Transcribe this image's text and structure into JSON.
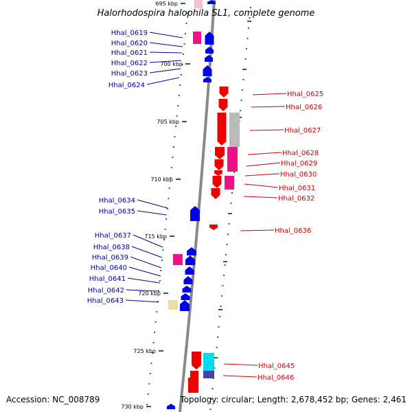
{
  "header": {
    "title": "Halorhodospira halophila SL1, complete genome"
  },
  "footer": {
    "accession": "Accession: NC_008789",
    "stats": "Topology: circular; Length: 2,678,452 bp; Genes: 2,461"
  },
  "chart_data": {
    "type": "circular-genome-map-detail",
    "accession": "NC_008789",
    "organism": "Halorhodospira halophila SL1",
    "topology": "circular",
    "length_bp": 2678452,
    "gene_count": 2461,
    "scale_unit": "kbp",
    "visible_range_kbp": [
      695,
      730
    ],
    "scale_ticks": [
      {
        "kbp": 695,
        "label": "695 kbp"
      },
      {
        "kbp": 700,
        "label": "700 kbp"
      },
      {
        "kbp": 705,
        "label": "705 kbp"
      },
      {
        "kbp": 710,
        "label": "710 kbp"
      },
      {
        "kbp": 715,
        "label": "715 kbp"
      },
      {
        "kbp": 720,
        "label": "720 kbp"
      },
      {
        "kbp": 725,
        "label": "725 kbp"
      },
      {
        "kbp": 730,
        "label": "730 kbp"
      }
    ],
    "genes": [
      {
        "id": "Hhal_0619",
        "strand": "-",
        "color": "#0000ee",
        "cog_color": "#ee1188"
      },
      {
        "id": "Hhal_0620",
        "strand": "-",
        "color": "#0000ee"
      },
      {
        "id": "Hhal_0621",
        "strand": "-",
        "color": "#0000ee"
      },
      {
        "id": "Hhal_0622",
        "strand": "-",
        "color": "#0000ee"
      },
      {
        "id": "Hhal_0623",
        "strand": "-",
        "color": "#0000ee"
      },
      {
        "id": "Hhal_0624",
        "strand": "-",
        "color": "#0000ee"
      },
      {
        "id": "Hhal_0625",
        "strand": "+",
        "color": "#ee0000"
      },
      {
        "id": "Hhal_0626",
        "strand": "+",
        "color": "#ee0000"
      },
      {
        "id": "Hhal_0627",
        "strand": "+",
        "color": "#ee0000",
        "cog_color": "#bbbbbb"
      },
      {
        "id": "Hhal_0628",
        "strand": "+",
        "color": "#ee0000",
        "cog_color": "#ee1188"
      },
      {
        "id": "Hhal_0629",
        "strand": "+",
        "color": "#ee0000",
        "cog_color": "#ee1188"
      },
      {
        "id": "Hhal_0630",
        "strand": "+",
        "color": "#ee0000"
      },
      {
        "id": "Hhal_0631",
        "strand": "+",
        "color": "#ee0000",
        "cog_color": "#ee1188"
      },
      {
        "id": "Hhal_0632",
        "strand": "+",
        "color": "#ee0000"
      },
      {
        "id": "Hhal_0634",
        "strand": "-",
        "color": "#0000ee"
      },
      {
        "id": "Hhal_0635",
        "strand": "-",
        "color": "#0000ee"
      },
      {
        "id": "Hhal_0636",
        "strand": "+",
        "color": "#ee0000"
      },
      {
        "id": "Hhal_0637",
        "strand": "-",
        "color": "#0000ee"
      },
      {
        "id": "Hhal_0638",
        "strand": "-",
        "color": "#0000ee",
        "cog_color": "#ee1188"
      },
      {
        "id": "Hhal_0639",
        "strand": "-",
        "color": "#0000ee"
      },
      {
        "id": "Hhal_0640",
        "strand": "-",
        "color": "#0000ee"
      },
      {
        "id": "Hhal_0641",
        "strand": "-",
        "color": "#0000ee"
      },
      {
        "id": "Hhal_0642",
        "strand": "-",
        "color": "#0000ee"
      },
      {
        "id": "Hhal_0643",
        "strand": "-",
        "color": "#0000ee",
        "cog_color": "#e8e0a0"
      },
      {
        "id": "Hhal_0645",
        "strand": "+",
        "color": "#ee0000",
        "cog_color": "#00ddee"
      },
      {
        "id": "Hhal_0646",
        "strand": "+",
        "color": "#ee0000",
        "cog_color": "#4444aa"
      }
    ],
    "label_colors": {
      "forward": "#cc0000",
      "reverse": "#000099"
    }
  }
}
